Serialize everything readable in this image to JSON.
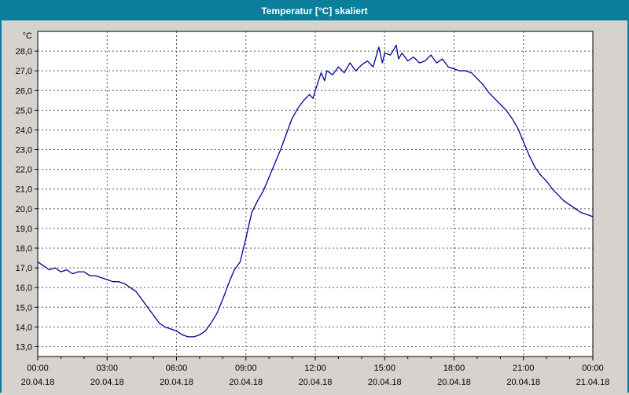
{
  "window": {
    "title": "Temperatur [°C] skaliert"
  },
  "colors": {
    "titlebar": "#0a7e9b",
    "titlebar_text": "#ffffff",
    "window_background": "#d6d3ce",
    "plot_background": "#ffffff",
    "grid": "#555555",
    "axis": "#000000",
    "line": "#000099"
  },
  "chart_data": {
    "type": "line",
    "title": "Temperatur [°C] skaliert",
    "xlabel": "",
    "ylabel": "°C",
    "xlim": [
      0,
      24
    ],
    "ylim": [
      12.5,
      29.0
    ],
    "grid": true,
    "grid_style": "dashed",
    "legend": "none",
    "line_color": "#000099",
    "x_minor_step": 1,
    "y_ticks": [
      {
        "value": 13,
        "label": "13,0"
      },
      {
        "value": 14,
        "label": "14,0"
      },
      {
        "value": 15,
        "label": "15,0"
      },
      {
        "value": 16,
        "label": "16,0"
      },
      {
        "value": 17,
        "label": "17,0"
      },
      {
        "value": 18,
        "label": "18,0"
      },
      {
        "value": 19,
        "label": "19,0"
      },
      {
        "value": 20,
        "label": "20,0"
      },
      {
        "value": 21,
        "label": "21,0"
      },
      {
        "value": 22,
        "label": "22,0"
      },
      {
        "value": 23,
        "label": "23,0"
      },
      {
        "value": 24,
        "label": "24,0"
      },
      {
        "value": 25,
        "label": "25,0"
      },
      {
        "value": 26,
        "label": "26,0"
      },
      {
        "value": 27,
        "label": "27,0"
      },
      {
        "value": 28,
        "label": "28,0"
      }
    ],
    "x_ticks": [
      {
        "hours": 0,
        "time": "00:00",
        "date": "20.04.18"
      },
      {
        "hours": 3,
        "time": "03:00",
        "date": "20.04.18"
      },
      {
        "hours": 6,
        "time": "06:00",
        "date": "20.04.18"
      },
      {
        "hours": 9,
        "time": "09:00",
        "date": "20.04.18"
      },
      {
        "hours": 12,
        "time": "12:00",
        "date": "20.04.18"
      },
      {
        "hours": 15,
        "time": "15:00",
        "date": "20.04.18"
      },
      {
        "hours": 18,
        "time": "18:00",
        "date": "20.04.18"
      },
      {
        "hours": 21,
        "time": "21:00",
        "date": "20.04.18"
      },
      {
        "hours": 24,
        "time": "00:00",
        "date": "21.04.18"
      }
    ],
    "series": [
      {
        "name": "Temperatur",
        "x": [
          0,
          0.25,
          0.5,
          0.75,
          1,
          1.25,
          1.5,
          1.75,
          2,
          2.25,
          2.5,
          2.75,
          3,
          3.25,
          3.5,
          3.75,
          4,
          4.25,
          4.5,
          4.75,
          5,
          5.25,
          5.5,
          5.75,
          6,
          6.25,
          6.5,
          6.75,
          7,
          7.25,
          7.5,
          7.75,
          8,
          8.25,
          8.5,
          8.75,
          9,
          9.25,
          9.5,
          9.75,
          10,
          10.25,
          10.5,
          10.75,
          11,
          11.25,
          11.5,
          11.75,
          11.9,
          12,
          12.25,
          12.4,
          12.5,
          12.75,
          13,
          13.25,
          13.5,
          13.75,
          14,
          14.25,
          14.5,
          14.75,
          14.9,
          15,
          15.25,
          15.5,
          15.6,
          15.75,
          16,
          16.25,
          16.5,
          16.75,
          17,
          17.25,
          17.5,
          17.75,
          18,
          18.25,
          18.5,
          18.75,
          19,
          19.25,
          19.5,
          19.75,
          20,
          20.25,
          20.5,
          20.75,
          21,
          21.25,
          21.5,
          21.75,
          22,
          22.25,
          22.5,
          22.75,
          23,
          23.25,
          23.5,
          23.75,
          24
        ],
        "y": [
          17.3,
          17.1,
          16.9,
          17.0,
          16.8,
          16.9,
          16.7,
          16.8,
          16.8,
          16.6,
          16.6,
          16.5,
          16.4,
          16.3,
          16.3,
          16.2,
          16.0,
          15.8,
          15.4,
          15.0,
          14.6,
          14.2,
          14.0,
          13.9,
          13.8,
          13.6,
          13.5,
          13.5,
          13.6,
          13.8,
          14.2,
          14.7,
          15.4,
          16.2,
          16.9,
          17.3,
          18.5,
          19.8,
          20.4,
          20.9,
          21.6,
          22.3,
          23.0,
          23.8,
          24.6,
          25.1,
          25.5,
          25.8,
          25.6,
          26.0,
          26.9,
          26.5,
          27.0,
          26.8,
          27.2,
          26.9,
          27.4,
          27.0,
          27.3,
          27.5,
          27.2,
          28.2,
          27.4,
          27.9,
          27.8,
          28.3,
          27.6,
          27.9,
          27.5,
          27.7,
          27.4,
          27.5,
          27.8,
          27.4,
          27.6,
          27.2,
          27.1,
          27.0,
          27.0,
          26.9,
          26.6,
          26.3,
          25.9,
          25.6,
          25.3,
          25.0,
          24.6,
          24.1,
          23.4,
          22.7,
          22.1,
          21.7,
          21.4,
          21.0,
          20.7,
          20.4,
          20.2,
          20.0,
          19.8,
          19.7,
          19.6
        ]
      }
    ]
  }
}
